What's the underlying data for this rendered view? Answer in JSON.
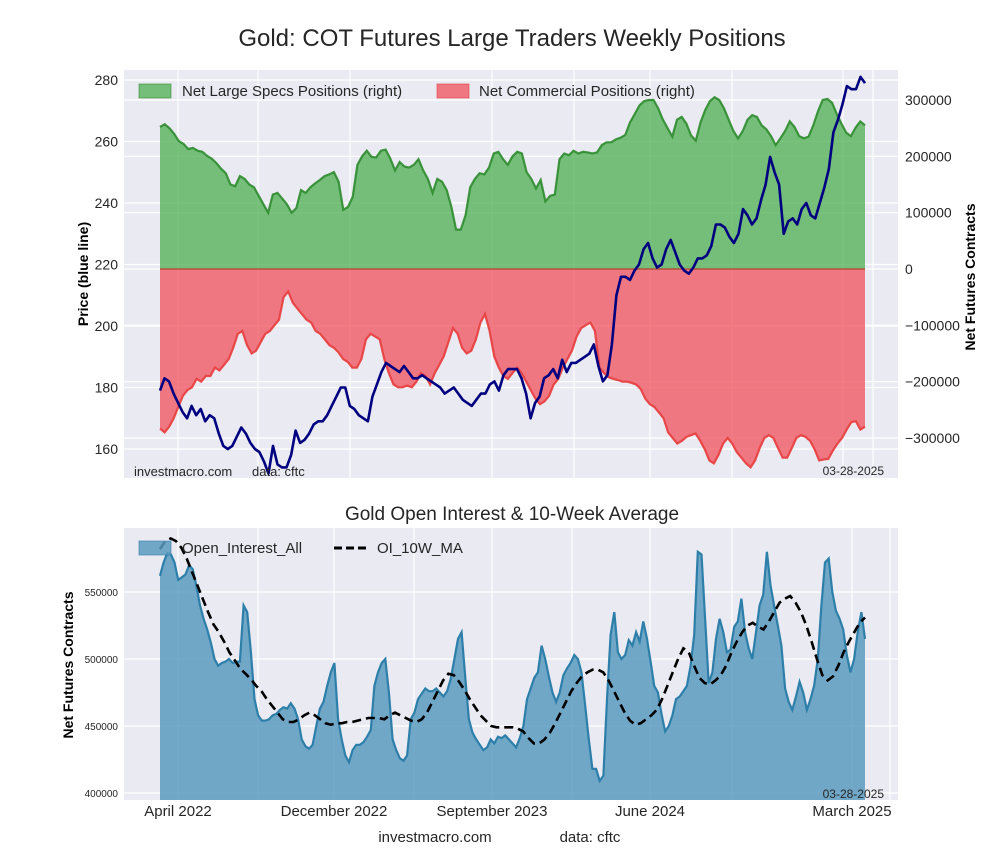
{
  "chart_data": [
    {
      "type": "area",
      "title": "Gold: COT Futures Large Traders Weekly Positions",
      "ylabel": "Price (blue line)",
      "ylabel_right": "Net Futures Contracts",
      "ylim": [
        152,
        282
      ],
      "ylim_right": [
        -370000,
        340000
      ],
      "yticks": [
        160,
        180,
        200,
        220,
        240,
        260,
        280
      ],
      "yticks_right": [
        -300000,
        -200000,
        -100000,
        0,
        100000,
        200000,
        300000
      ],
      "yticks_right_labels": [
        "−300000",
        "−200000",
        "−100000",
        "0",
        "100000",
        "200000",
        "300000"
      ],
      "grid": true,
      "legend_position": "top-left",
      "annotations": {
        "source": "investmacro.com",
        "data": "data: cftc",
        "date": "03-28-2025"
      },
      "x_start": "2022-03-01",
      "x_end": "2025-03-28",
      "series": [
        {
          "name": "Net Large Specs Positions (right)",
          "kind": "area",
          "color": "#4caf50",
          "line_color": "#2e8b2e",
          "values": [
            252000,
            257000,
            250000,
            240000,
            227000,
            222000,
            213000,
            215000,
            210000,
            208000,
            201000,
            196000,
            188000,
            178000,
            170000,
            150000,
            147000,
            165000,
            160000,
            150000,
            145000,
            130000,
            115000,
            100000,
            132000,
            135000,
            125000,
            115000,
            100000,
            108000,
            140000,
            135000,
            145000,
            152000,
            158000,
            165000,
            168000,
            172000,
            155000,
            105000,
            110000,
            128000,
            185000,
            200000,
            210000,
            199000,
            198000,
            210000,
            212000,
            196000,
            175000,
            190000,
            182000,
            180000,
            185000,
            195000,
            175000,
            160000,
            135000,
            160000,
            155000,
            140000,
            110000,
            70000,
            70000,
            95000,
            145000,
            160000,
            170000,
            168000,
            180000,
            205000,
            208000,
            195000,
            185000,
            200000,
            208000,
            205000,
            172000,
            160000,
            143000,
            158000,
            120000,
            130000,
            132000,
            195000,
            205000,
            202000,
            210000,
            205000,
            208000,
            207000,
            205000,
            207000,
            220000,
            225000,
            225000,
            230000,
            233000,
            238000,
            260000,
            275000,
            290000,
            298000,
            300000,
            300000,
            285000,
            265000,
            250000,
            235000,
            265000,
            270000,
            258000,
            237000,
            228000,
            260000,
            282000,
            298000,
            305000,
            300000,
            285000,
            265000,
            245000,
            232000,
            245000,
            265000,
            273000,
            270000,
            255000,
            248000,
            236000,
            220000,
            232000,
            245000,
            262000,
            252000,
            236000,
            232000,
            235000,
            255000,
            280000,
            300000,
            302000,
            295000,
            275000,
            258000,
            242000,
            236000,
            251000,
            262000,
            255000
          ]
        },
        {
          "name": "Net Commercial Positions (right)",
          "kind": "area",
          "color": "#f05a64",
          "line_color": "#e83c3c",
          "values": [
            -283000,
            -290000,
            -280000,
            -265000,
            -245000,
            -225000,
            -215000,
            -210000,
            -195000,
            -200000,
            -190000,
            -190000,
            -175000,
            -180000,
            -170000,
            -160000,
            -140000,
            -115000,
            -110000,
            -135000,
            -150000,
            -145000,
            -130000,
            -115000,
            -110000,
            -100000,
            -90000,
            -50000,
            -40000,
            -60000,
            -70000,
            -80000,
            -90000,
            -95000,
            -110000,
            -115000,
            -125000,
            -135000,
            -140000,
            -148000,
            -160000,
            -165000,
            -175000,
            -175000,
            -160000,
            -125000,
            -115000,
            -120000,
            -125000,
            -160000,
            -185000,
            -205000,
            -210000,
            -210000,
            -207000,
            -210000,
            -200000,
            -185000,
            -190000,
            -205000,
            -185000,
            -170000,
            -155000,
            -130000,
            -105000,
            -115000,
            -140000,
            -150000,
            -145000,
            -125000,
            -95000,
            -80000,
            -110000,
            -155000,
            -175000,
            -190000,
            -195000,
            -185000,
            -175000,
            -185000,
            -200000,
            -215000,
            -230000,
            -240000,
            -235000,
            -225000,
            -205000,
            -195000,
            -175000,
            -160000,
            -145000,
            -120000,
            -105000,
            -100000,
            -95000,
            -110000,
            -175000,
            -185000,
            -192000,
            -195000,
            -197000,
            -200000,
            -200000,
            -202000,
            -205000,
            -213000,
            -230000,
            -240000,
            -245000,
            -255000,
            -265000,
            -290000,
            -300000,
            -310000,
            -305000,
            -298000,
            -295000,
            -292000,
            -305000,
            -320000,
            -340000,
            -345000,
            -330000,
            -310000,
            -300000,
            -310000,
            -325000,
            -335000,
            -345000,
            -352000,
            -340000,
            -318000,
            -300000,
            -295000,
            -300000,
            -318000,
            -335000,
            -335000,
            -318000,
            -300000,
            -295000,
            -298000,
            -305000,
            -320000,
            -340000,
            -338000,
            -337000,
            -322000,
            -310000,
            -300000,
            -285000,
            -272000,
            -270000,
            -285000,
            -280000
          ]
        },
        {
          "name": "Price (blue line)",
          "kind": "line",
          "color": "#000080",
          "values": [
            179,
            183,
            182,
            178,
            175,
            172,
            170,
            174,
            171,
            173,
            169,
            171,
            170,
            165,
            161,
            160,
            161,
            164,
            167,
            165,
            162,
            160,
            159,
            156,
            152,
            161,
            155,
            154,
            154,
            158,
            166,
            162,
            163,
            165,
            168,
            169,
            169,
            171,
            174,
            177,
            180,
            180,
            174,
            173,
            171,
            170,
            169,
            177,
            181,
            185,
            188,
            187,
            186,
            185,
            187,
            185,
            183,
            183,
            184,
            183,
            182,
            181,
            180,
            178,
            179,
            180,
            178,
            176,
            175,
            174,
            176,
            178,
            178,
            181,
            182,
            179,
            184,
            186,
            186,
            186,
            183,
            178,
            170,
            175,
            177,
            183,
            184,
            186,
            183,
            189,
            185,
            188,
            188,
            189,
            190,
            191,
            194,
            187,
            182,
            184,
            194,
            210,
            216,
            216,
            215,
            218,
            220,
            225,
            227,
            222,
            219,
            220,
            225,
            228,
            224,
            220,
            218,
            217,
            219,
            222,
            222,
            223,
            226,
            233,
            233,
            232,
            229,
            227,
            230,
            238,
            236,
            233,
            235,
            241,
            246,
            255,
            250,
            246,
            230,
            234,
            235,
            233,
            238,
            240,
            236,
            235,
            240,
            245,
            251,
            263,
            267,
            272,
            278,
            277,
            277,
            281,
            279
          ]
        }
      ]
    },
    {
      "type": "area",
      "title": "Gold Open Interest & 10-Week Average",
      "ylabel": "Net Futures Contracts",
      "ylim": [
        395000,
        598000
      ],
      "yticks": [
        400000,
        450000,
        500000,
        550000
      ],
      "xticks": [
        "April 2022",
        "December 2022",
        "September 2023",
        "June 2024",
        "March 2025"
      ],
      "grid": true,
      "legend_position": "top-left",
      "annotations": {
        "date": "03-28-2025"
      },
      "series": [
        {
          "name": "Open_Interest_All",
          "kind": "area",
          "color": "#5b9bbf",
          "line_color": "#2d7faa",
          "values": [
            562000,
            572000,
            579000,
            578000,
            572000,
            559000,
            561000,
            563000,
            570000,
            567000,
            555000,
            540000,
            530000,
            522000,
            512000,
            500000,
            495000,
            497000,
            498000,
            500000,
            497000,
            498000,
            498000,
            540000,
            535000,
            505000,
            470000,
            458000,
            454000,
            454000,
            455000,
            458000,
            459000,
            462000,
            464000,
            463000,
            467000,
            463000,
            455000,
            440000,
            435000,
            433000,
            436000,
            450000,
            463000,
            468000,
            480000,
            490000,
            497000,
            455000,
            440000,
            428000,
            423000,
            432000,
            436000,
            436000,
            438000,
            442000,
            447000,
            480000,
            490000,
            497000,
            500000,
            475000,
            440000,
            432000,
            426000,
            424000,
            428000,
            455000,
            460000,
            470000,
            474000,
            478000,
            476000,
            476000,
            478000,
            475000,
            472000,
            476000,
            485000,
            500000,
            515000,
            520000,
            486000,
            455000,
            445000,
            440000,
            436000,
            432000,
            434000,
            440000,
            437000,
            442000,
            441000,
            443000,
            440000,
            437000,
            434000,
            441000,
            450000,
            470000,
            478000,
            486000,
            490000,
            510000,
            500000,
            487000,
            475000,
            468000,
            475000,
            488000,
            493000,
            497000,
            503000,
            500000,
            490000,
            465000,
            440000,
            418000,
            418000,
            409000,
            413000,
            470000,
            518000,
            535000,
            505000,
            500000,
            503000,
            514000,
            510000,
            520000,
            513000,
            528000,
            515000,
            498000,
            480000,
            475000,
            459000,
            446000,
            450000,
            458000,
            470000,
            472000,
            476000,
            480000,
            495000,
            518000,
            580000,
            578000,
            530000,
            482000,
            490000,
            515000,
            530000,
            520000,
            505000,
            507000,
            524000,
            528000,
            545000,
            520000,
            508000,
            500000,
            520000,
            540000,
            548000,
            580000,
            555000,
            540000,
            525000,
            510000,
            478000,
            468000,
            462000,
            472000,
            483000,
            475000,
            462000,
            470000,
            480000,
            500000,
            540000,
            572000,
            575000,
            550000,
            536000,
            530000,
            522000,
            503000,
            490000,
            500000,
            520000,
            535000,
            515000
          ]
        },
        {
          "name": "OI_10W_MA",
          "kind": "line",
          "style": "dashed",
          "color": "#000000",
          "values": [
            582000,
            588000,
            590000,
            588000,
            583000,
            575000,
            565000,
            555000,
            545000,
            535000,
            526000,
            520000,
            513000,
            505000,
            499000,
            493000,
            489000,
            485000,
            480000,
            476000,
            470000,
            465000,
            460000,
            455000,
            453000,
            453000,
            455000,
            458000,
            460000,
            458000,
            455000,
            452000,
            451000,
            452000,
            452000,
            453000,
            453000,
            454000,
            455000,
            456000,
            456000,
            456000,
            455000,
            458000,
            460000,
            458000,
            456000,
            454000,
            453000,
            455000,
            460000,
            468000,
            476000,
            484000,
            489000,
            488000,
            483000,
            477000,
            470000,
            464000,
            458000,
            454000,
            450000,
            449000,
            449000,
            449000,
            449000,
            448000,
            446000,
            441000,
            437000,
            437000,
            440000,
            445000,
            452000,
            460000,
            468000,
            476000,
            482000,
            487000,
            490000,
            492000,
            492000,
            490000,
            484000,
            476000,
            468000,
            460000,
            454000,
            451000,
            452000,
            455000,
            458000,
            462000,
            470000,
            480000,
            490000,
            500000,
            508000,
            505000,
            495000,
            486000,
            482000,
            481000,
            484000,
            488000,
            495000,
            505000,
            513000,
            520000,
            525000,
            527000,
            524000,
            522000,
            528000,
            535000,
            542000,
            545000,
            547000,
            542000,
            535000,
            525000,
            513000,
            500000,
            488000,
            484000,
            487000,
            495000,
            505000,
            513000,
            520000,
            527000,
            531000
          ]
        }
      ]
    }
  ],
  "footer": {
    "source": "investmacro.com",
    "data": "data: cftc"
  }
}
